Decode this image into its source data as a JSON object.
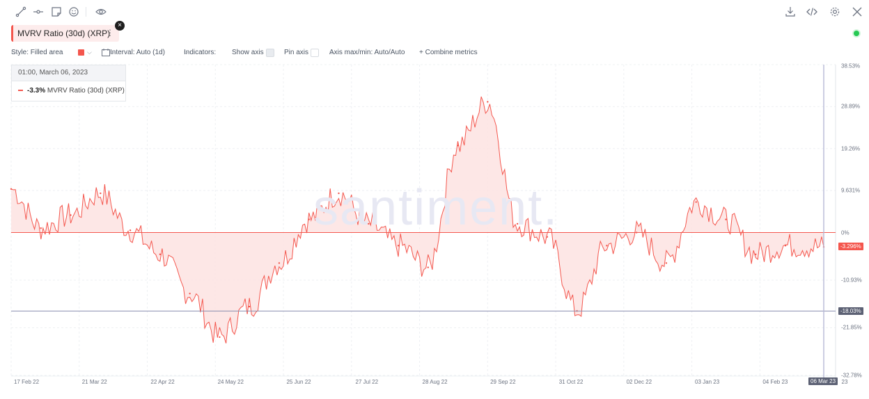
{
  "toolbar_left_icons": [
    "line-draw-icon",
    "segment-icon",
    "sticky-note-icon",
    "emoji-icon",
    "eye-icon"
  ],
  "toolbar_right_icons": [
    "download-icon",
    "embed-code-icon",
    "settings-icon",
    "close-icon"
  ],
  "metric": {
    "label": "MVRV Ratio (30d) (XRP)",
    "menu": "⋮",
    "color": "#f4564d"
  },
  "controls": {
    "style": "Style: Filled area",
    "interval": "Interval: Auto (1d)",
    "indicators": "Indicators:",
    "show_axis": "Show axis",
    "pin_axis": "Pin axis",
    "axis_maxmin": "Axis max/min: Auto/Auto",
    "combine": "+  Combine metrics"
  },
  "tooltip": {
    "date": "01:00, March 06, 2023",
    "value": "-3.3%",
    "metric": "MVRV Ratio (30d) (XRP)"
  },
  "watermark": "santiment.",
  "chart_data": {
    "type": "area",
    "series": [
      {
        "name": "MVRV Ratio (30d) (XRP)",
        "color": "#f4564d"
      }
    ],
    "x": [
      "17 Feb 22",
      "03 Mar 22",
      "17 Mar 22",
      "31 Mar 22",
      "14 Apr 22",
      "28 Apr 22",
      "12 May 22",
      "26 May 22",
      "09 Jun 22",
      "23 Jun 22",
      "07 Jul 22",
      "21 Jul 22",
      "04 Aug 22",
      "18 Aug 22",
      "01 Sep 22",
      "15 Sep 22",
      "29 Sep 22",
      "13 Oct 22",
      "27 Oct 22",
      "10 Nov 22",
      "24 Nov 22",
      "08 Dec 22",
      "22 Dec 22",
      "05 Jan 23",
      "19 Jan 23",
      "02 Feb 23",
      "16 Feb 23",
      "06 Mar 23"
    ],
    "y": [
      10,
      1,
      4,
      9,
      0.5,
      -5,
      -14,
      -24,
      -17,
      -7,
      3,
      9,
      2,
      -3,
      -8,
      20,
      30,
      2,
      -1,
      -18,
      -3,
      0,
      -7,
      7,
      3,
      -5,
      -3,
      -3.3
    ],
    "ylim": [
      -32.78,
      38.53
    ],
    "yticks": [
      "38.53%",
      "28.89%",
      "19.26%",
      "9.631%",
      "0%",
      "-10.93%",
      "-21.85%",
      "-32.78%"
    ],
    "ytick_values": [
      38.53,
      28.89,
      19.26,
      9.631,
      0,
      -10.93,
      -21.85,
      -32.78
    ],
    "xticks": [
      "17 Feb 22",
      "21 Mar 22",
      "22 Apr 22",
      "24 May 22",
      "25 Jun 22",
      "27 Jul 22",
      "28 Aug 22",
      "29 Sep 22",
      "31 Oct 22",
      "02 Dec 22",
      "03 Jan 23",
      "04 Feb 23"
    ],
    "last_date_label": "06 Mar 23",
    "last_date_suffix": "23",
    "last_value_label": "-3.296%",
    "crosshair_value_label": "-18.03%",
    "crosshair_value": -18.03,
    "grid": true
  }
}
